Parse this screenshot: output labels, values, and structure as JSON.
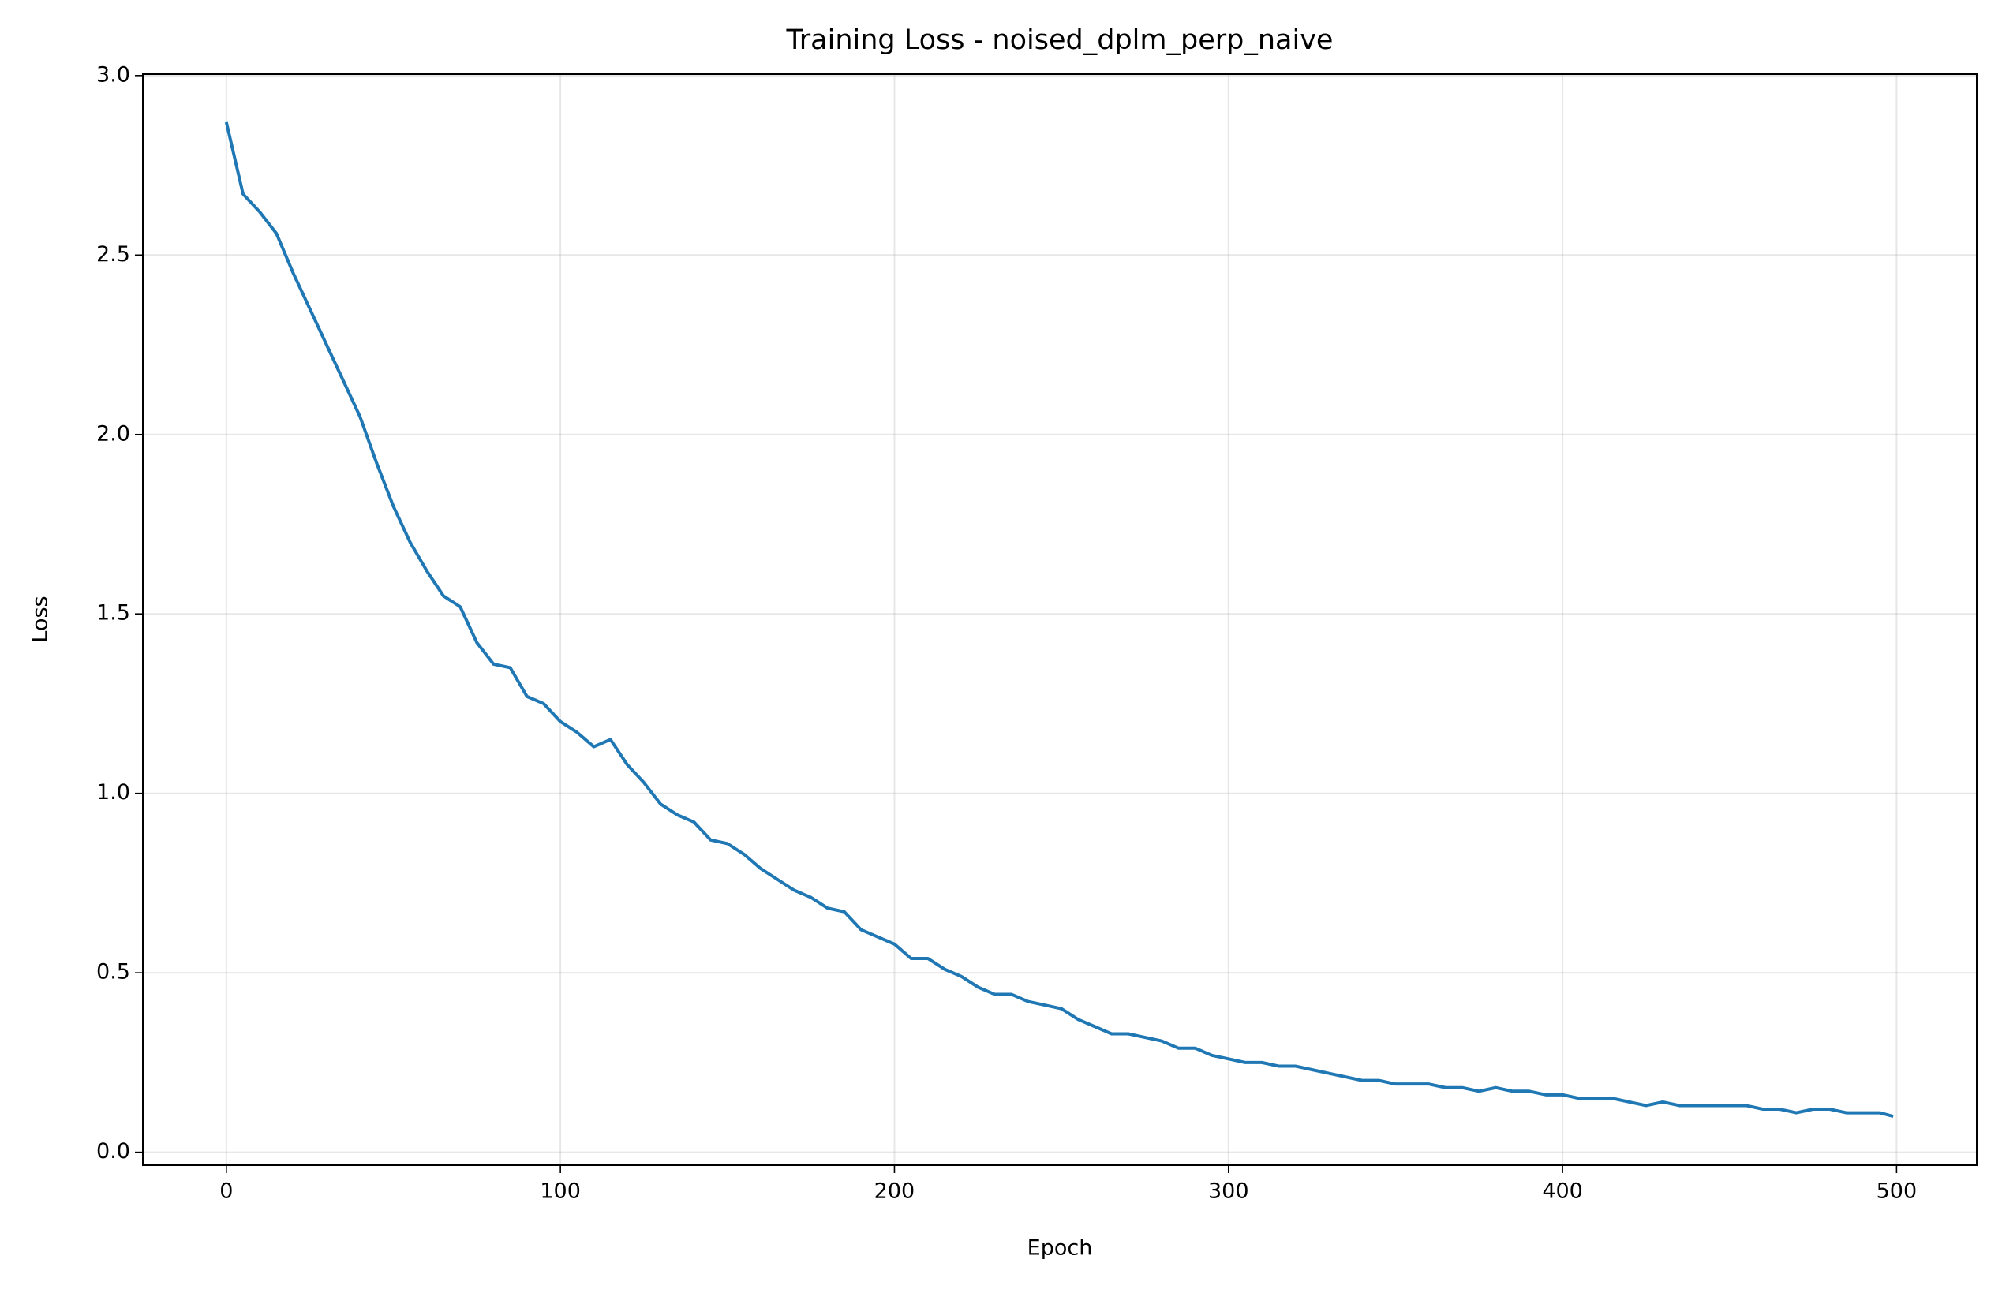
{
  "chart_data": {
    "type": "line",
    "title": "Training Loss - noised_dplm_perp_naive",
    "x_label": "Epoch",
    "y_label": "Loss",
    "x": [
      0,
      5,
      10,
      15,
      20,
      25,
      30,
      35,
      40,
      45,
      50,
      55,
      60,
      65,
      70,
      75,
      80,
      85,
      90,
      95,
      100,
      105,
      110,
      115,
      120,
      125,
      130,
      135,
      140,
      145,
      150,
      155,
      160,
      165,
      170,
      175,
      180,
      185,
      190,
      195,
      200,
      205,
      210,
      215,
      220,
      225,
      230,
      235,
      240,
      245,
      250,
      255,
      260,
      265,
      270,
      275,
      280,
      285,
      290,
      295,
      300,
      305,
      310,
      315,
      320,
      325,
      330,
      335,
      340,
      345,
      350,
      355,
      360,
      365,
      370,
      375,
      380,
      385,
      390,
      395,
      400,
      405,
      410,
      415,
      420,
      425,
      430,
      435,
      440,
      445,
      450,
      455,
      460,
      465,
      470,
      475,
      480,
      485,
      490,
      495,
      499
    ],
    "series": [
      {
        "name": "Loss",
        "color": "#1f77b4",
        "values": [
          2.87,
          2.67,
          2.62,
          2.56,
          2.45,
          2.35,
          2.25,
          2.15,
          2.05,
          1.92,
          1.8,
          1.7,
          1.62,
          1.55,
          1.52,
          1.42,
          1.36,
          1.35,
          1.27,
          1.25,
          1.2,
          1.17,
          1.13,
          1.15,
          1.08,
          1.03,
          0.97,
          0.94,
          0.92,
          0.87,
          0.86,
          0.83,
          0.79,
          0.76,
          0.73,
          0.71,
          0.68,
          0.67,
          0.62,
          0.6,
          0.58,
          0.54,
          0.54,
          0.51,
          0.49,
          0.46,
          0.44,
          0.44,
          0.42,
          0.41,
          0.4,
          0.37,
          0.35,
          0.33,
          0.33,
          0.32,
          0.31,
          0.29,
          0.29,
          0.27,
          0.26,
          0.25,
          0.25,
          0.24,
          0.24,
          0.23,
          0.22,
          0.21,
          0.2,
          0.2,
          0.19,
          0.19,
          0.19,
          0.18,
          0.18,
          0.17,
          0.18,
          0.17,
          0.17,
          0.16,
          0.16,
          0.15,
          0.15,
          0.15,
          0.14,
          0.13,
          0.14,
          0.13,
          0.13,
          0.13,
          0.13,
          0.13,
          0.12,
          0.12,
          0.11,
          0.12,
          0.12,
          0.11,
          0.11,
          0.11,
          0.1
        ]
      }
    ],
    "xlim": [
      -25,
      524
    ],
    "ylim": [
      -0.036,
      3.004
    ],
    "xticks": [
      0,
      100,
      200,
      300,
      400,
      500
    ],
    "yticks": [
      {
        "value": 0,
        "label": "0.0"
      },
      0.5,
      {
        "value": 1,
        "label": "1.0"
      },
      1.5,
      {
        "value": 2,
        "label": "2.0"
      },
      2.5,
      {
        "value": 3,
        "label": "3.0"
      }
    ],
    "grid": true
  }
}
